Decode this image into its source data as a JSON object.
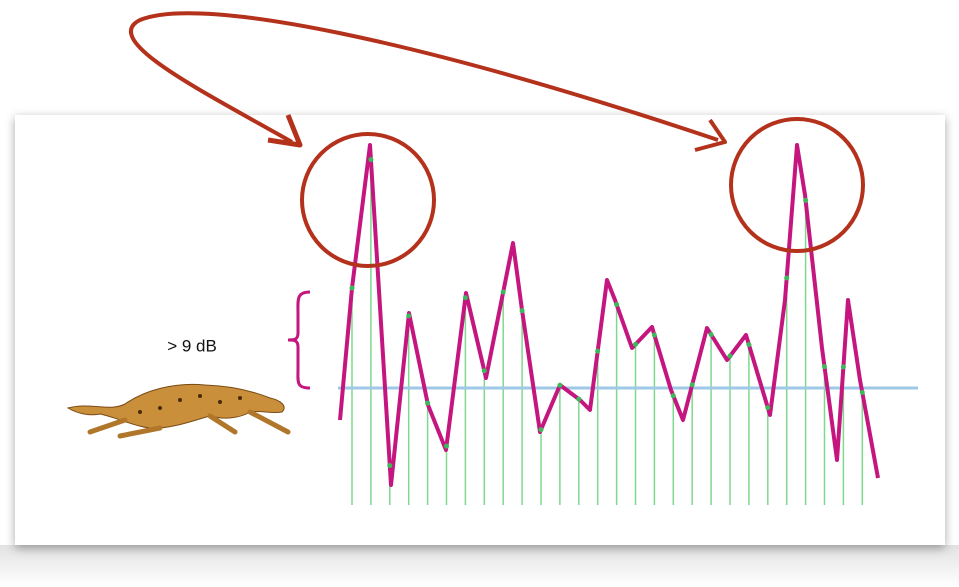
{
  "annotation": {
    "label": "> 9 dB"
  }
}
